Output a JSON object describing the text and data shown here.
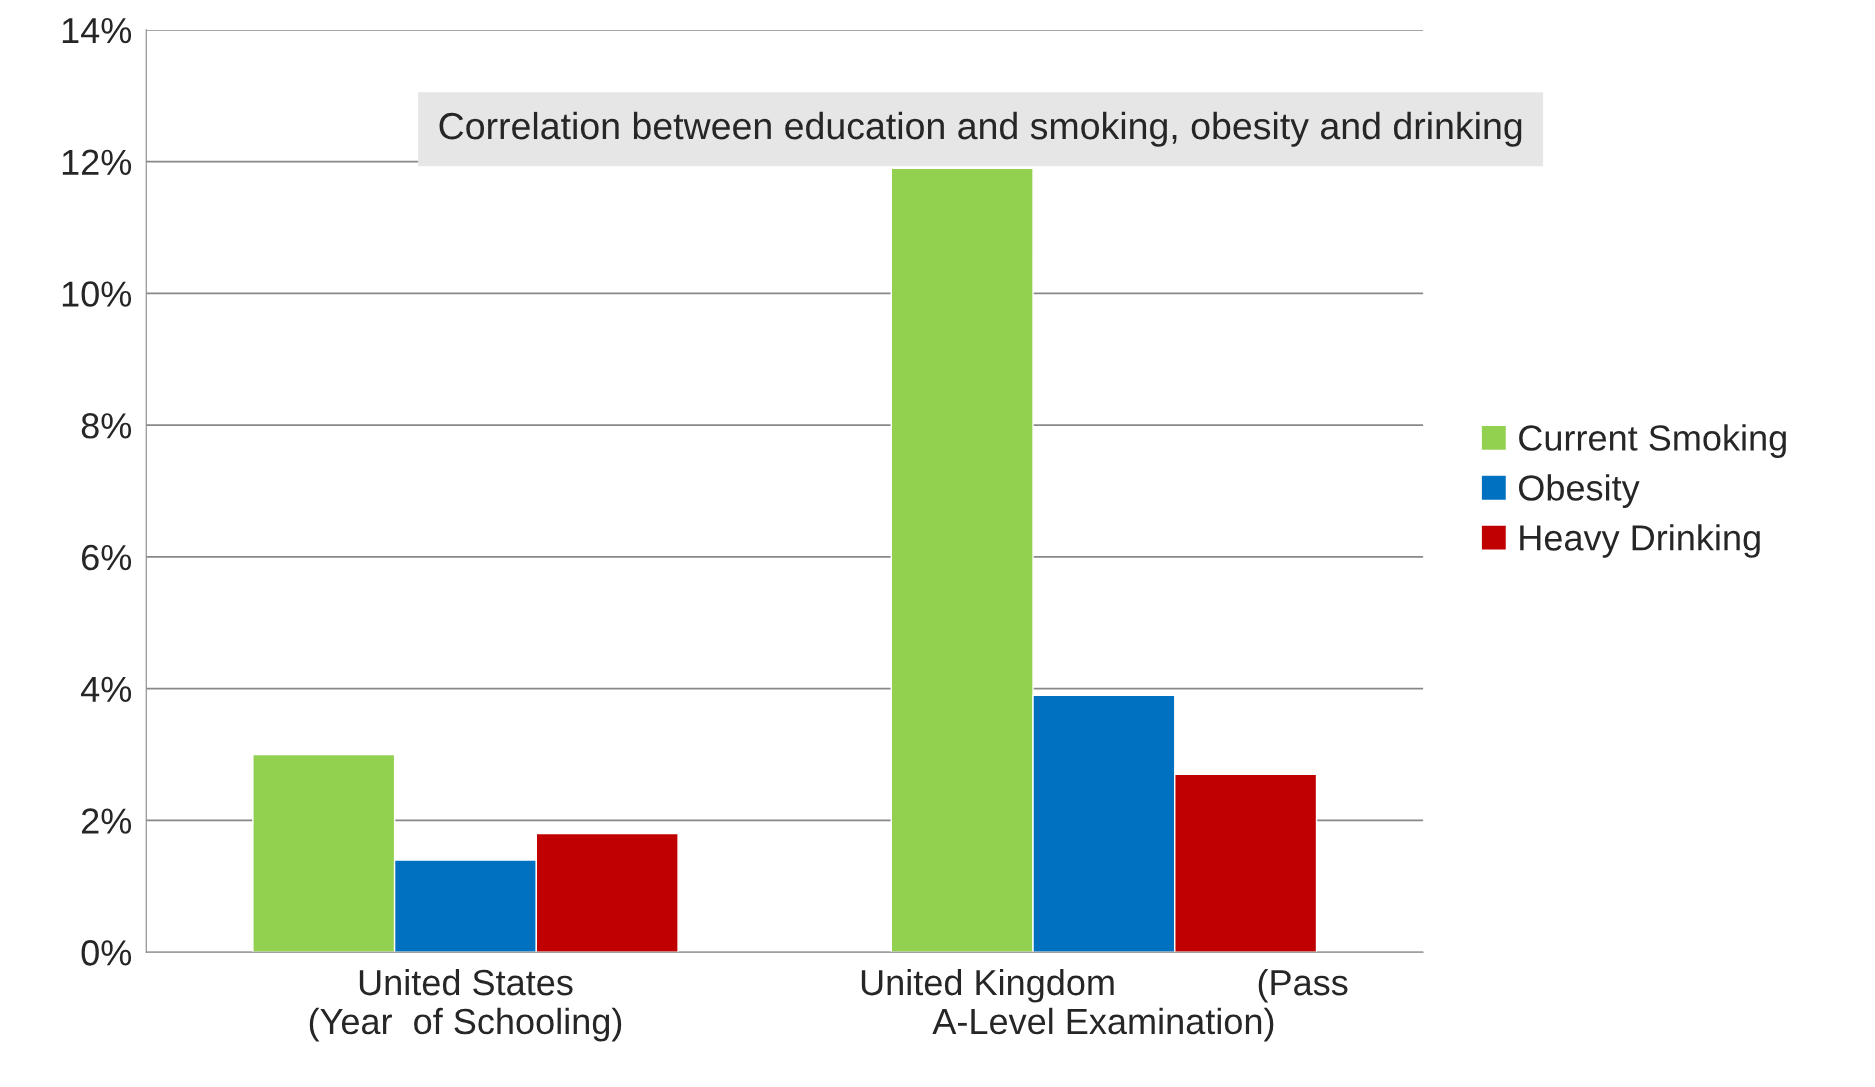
{
  "chart_data": {
    "type": "bar",
    "title": "Correlation between education and smoking, obesity and drinking",
    "categories": [
      "United States\n(Year  of Schooling)",
      "United Kingdom              (Pass\nA-Level Examination)"
    ],
    "series": [
      {
        "name": "Current Smoking",
        "color": "#92d050",
        "values": [
          3.0,
          11.9
        ]
      },
      {
        "name": "Obesity",
        "color": "#0070c0",
        "values": [
          1.4,
          3.9
        ]
      },
      {
        "name": "Heavy Drinking",
        "color": "#c00000",
        "values": [
          1.8,
          2.7
        ]
      }
    ],
    "ylim": [
      0,
      14
    ],
    "yticks": [
      {
        "value": 0,
        "label": "0%"
      },
      {
        "value": 2,
        "label": "2%"
      },
      {
        "value": 4,
        "label": "4%"
      },
      {
        "value": 6,
        "label": "6%"
      },
      {
        "value": 8,
        "label": "8%"
      },
      {
        "value": 10,
        "label": "10%"
      },
      {
        "value": 12,
        "label": "12%"
      },
      {
        "value": 14,
        "label": "14%"
      }
    ],
    "grid": "y",
    "legend": "right"
  }
}
